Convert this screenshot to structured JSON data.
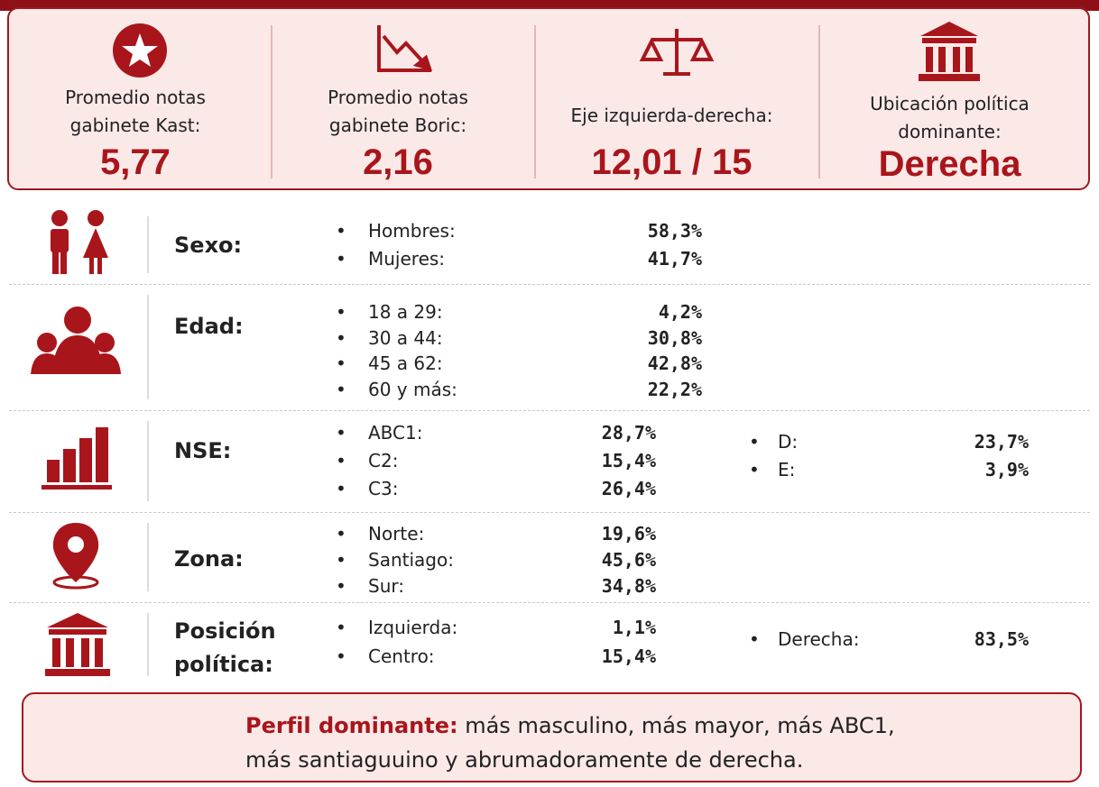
{
  "stats": [
    {
      "label": [
        "Promedio notas",
        "gabinete Kast:"
      ],
      "value": "5,77"
    },
    {
      "label": [
        "Promedio notas",
        "gabinete Boric:"
      ],
      "value": "2,16"
    },
    {
      "label": [
        "Eje izquierda-derecha:"
      ],
      "value": "12,01 / 15"
    },
    {
      "label": [
        "Ubicación política",
        "dominante:"
      ],
      "value": "Derecha"
    }
  ],
  "rows": [
    {
      "label": [
        "Sexo:"
      ],
      "col1": [
        {
          "label": "Hombres:",
          "value": "58,3%"
        },
        {
          "label": "Mujeres:",
          "value": "41,7%"
        }
      ],
      "col2": []
    },
    {
      "label": [
        "Edad:"
      ],
      "col1": [
        {
          "label": "18 a 29:",
          "value": "4,2%"
        },
        {
          "label": "30 a 44:",
          "value": "30,8%"
        },
        {
          "label": "45 a 62:",
          "value": "42,8%"
        },
        {
          "label": "60 y más:",
          "value": "22,2%"
        }
      ],
      "col2": []
    },
    {
      "label": [
        "NSE:"
      ],
      "col1": [
        {
          "label": "ABC1:",
          "value": "28,7%"
        },
        {
          "label": "C2:",
          "value": "15,4%"
        },
        {
          "label": "C3:",
          "value": "26,4%"
        }
      ],
      "col2": [
        {
          "label": "D:",
          "value": "23,7%"
        },
        {
          "label": "E:",
          "value": "3,9%"
        }
      ]
    },
    {
      "label": [
        "Zona:"
      ],
      "col1": [
        {
          "label": "Norte:",
          "value": "19,6%"
        },
        {
          "label": "Santiago:",
          "value": "45,6%"
        },
        {
          "label": "Sur:",
          "value": "34,8%"
        }
      ],
      "col2": []
    },
    {
      "label": [
        "Posición",
        "política:"
      ],
      "col1": [
        {
          "label": "Izquierda:",
          "value": "1,1%"
        },
        {
          "label": "Centro:",
          "value": "15,4%"
        }
      ],
      "col2": [
        {
          "label": "Derecha:",
          "value": "83,5%"
        }
      ]
    }
  ],
  "footer": {
    "highlight": "Perfil dominante:",
    "text": [
      "más masculino, más mayor, más ABC1,",
      "más santiaguuino y abrumadoramente de derecha."
    ]
  }
}
